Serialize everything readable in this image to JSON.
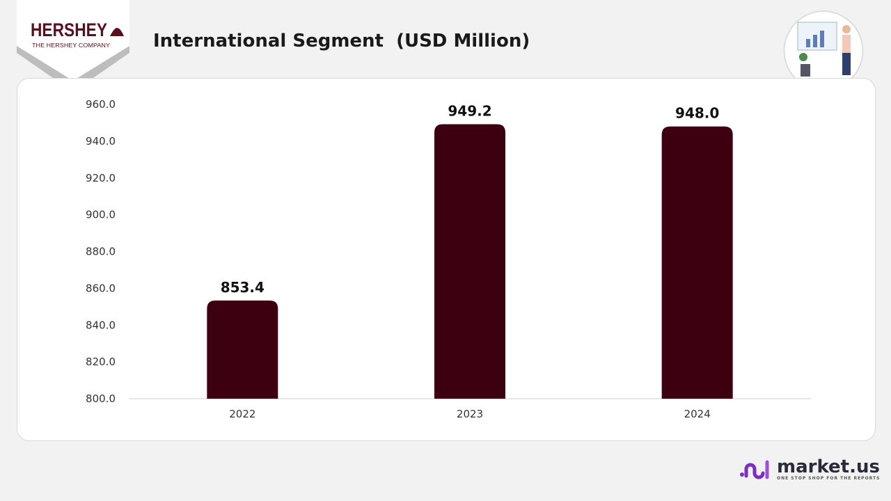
{
  "brand": {
    "name": "HERSHEY",
    "tagline": "THE HERSHEY COMPANY"
  },
  "header": {
    "title": "International Segment  (USD Million)"
  },
  "footer": {
    "logo_name": "market.us",
    "logo_tagline": "ONE STOP SHOP FOR THE REPORTS"
  },
  "colors": {
    "bar": "#3d0011",
    "accent": "#7b2fbe"
  },
  "chart_data": {
    "type": "bar",
    "title": "International Segment  (USD Million)",
    "categories": [
      "2022",
      "2023",
      "2024"
    ],
    "values": [
      853.4,
      949.2,
      948.0
    ],
    "data_labels": [
      "853.4",
      "949.2",
      "948.0"
    ],
    "ylim": [
      800,
      960
    ],
    "yticks": [
      "800.0",
      "820.0",
      "840.0",
      "860.0",
      "880.0",
      "900.0",
      "920.0",
      "940.0",
      "960.0"
    ],
    "xlabel": "",
    "ylabel": "",
    "grid": false,
    "legend": "none"
  }
}
